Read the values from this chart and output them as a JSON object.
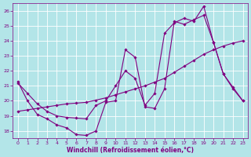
{
  "background_color": "#b3e5e8",
  "grid_color": "#c8dfe0",
  "line_color": "#800080",
  "xlabel": "Windchill (Refroidissement éolien,°C)",
  "xlim": [
    -0.5,
    23.5
  ],
  "ylim": [
    17.5,
    26.5
  ],
  "yticks": [
    18,
    19,
    20,
    21,
    22,
    23,
    24,
    25,
    26
  ],
  "xticks": [
    0,
    1,
    2,
    3,
    4,
    5,
    6,
    7,
    8,
    9,
    10,
    11,
    12,
    13,
    14,
    15,
    16,
    17,
    18,
    19,
    20,
    21,
    22,
    23
  ],
  "series1_x": [
    0,
    1,
    2,
    3,
    4,
    5,
    6,
    7,
    8,
    9,
    10,
    11,
    12,
    13,
    14,
    15,
    16,
    17,
    18,
    19,
    20,
    21,
    22,
    23
  ],
  "series1_y": [
    21.3,
    20.0,
    19.1,
    18.8,
    18.4,
    18.2,
    17.75,
    17.7,
    18.0,
    19.9,
    20.0,
    23.4,
    22.9,
    19.6,
    19.5,
    20.8,
    25.3,
    25.1,
    25.4,
    25.7,
    23.9,
    21.8,
    20.8,
    20.0
  ],
  "series2_x": [
    0,
    1,
    2,
    3,
    4,
    5,
    6,
    7,
    8,
    9,
    10,
    11,
    12,
    13,
    14,
    15,
    16,
    17,
    18,
    19,
    20,
    21,
    22,
    23
  ],
  "series2_y": [
    19.3,
    19.4,
    19.5,
    19.6,
    19.7,
    19.8,
    19.85,
    19.9,
    20.05,
    20.2,
    20.4,
    20.6,
    20.8,
    21.0,
    21.25,
    21.5,
    21.9,
    22.3,
    22.7,
    23.1,
    23.4,
    23.65,
    23.85,
    24.0
  ],
  "series3_x": [
    0,
    1,
    2,
    3,
    4,
    5,
    6,
    7,
    8,
    9,
    10,
    11,
    12,
    13,
    14,
    15,
    16,
    17,
    18,
    19,
    20,
    21,
    22,
    23
  ],
  "series3_y": [
    21.2,
    20.5,
    19.8,
    19.3,
    19.0,
    18.9,
    18.85,
    18.8,
    19.7,
    20.0,
    21.0,
    22.0,
    21.5,
    19.7,
    20.5,
    24.5,
    25.2,
    25.5,
    25.3,
    26.3,
    23.9,
    21.8,
    20.9,
    20.0
  ]
}
